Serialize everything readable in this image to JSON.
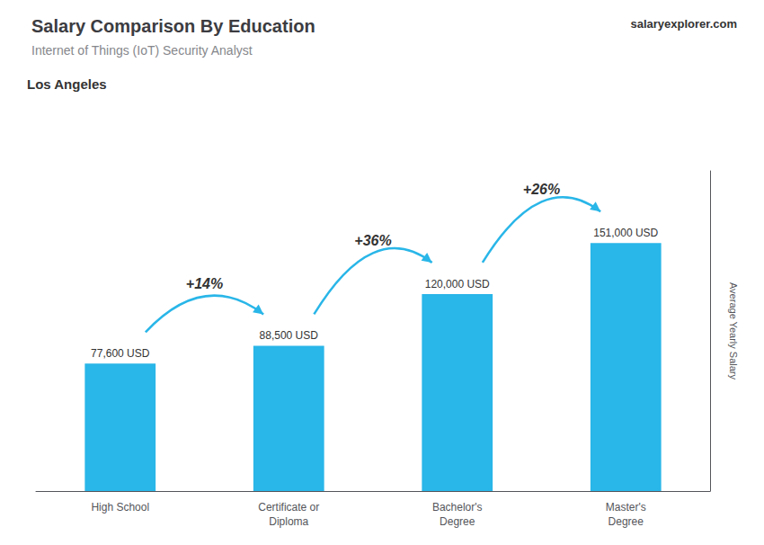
{
  "chart_data": {
    "type": "bar",
    "title": "Salary Comparison By Education",
    "subtitle": "Internet of Things (IoT) Security Analyst",
    "ylabel": "Average Yearly Salary",
    "categories": [
      "High School",
      "Certificate or\nDiploma",
      "Bachelor's\nDegree",
      "Master's\nDegree"
    ],
    "values": [
      77600,
      88500,
      120000,
      151000
    ],
    "value_labels": [
      "77,600 USD",
      "88,500 USD",
      "120,000 USD",
      "151,000 USD"
    ],
    "data_labels": true,
    "color": "#29B6E8",
    "ylim": [
      0,
      195000
    ],
    "grid": false,
    "tick_labels": "x",
    "annotations": [
      {
        "text": "Los Angeles"
      },
      {
        "text": "salaryexplorer.com"
      },
      {
        "text": "+14%",
        "from": "High School",
        "to": "Certificate or\nDiploma"
      },
      {
        "text": "+36%",
        "from": "Certificate or\nDiploma",
        "to": "Bachelor's\nDegree"
      },
      {
        "text": "+26%",
        "from": "Bachelor's\nDegree",
        "to": "Master's\nDegree"
      }
    ]
  }
}
